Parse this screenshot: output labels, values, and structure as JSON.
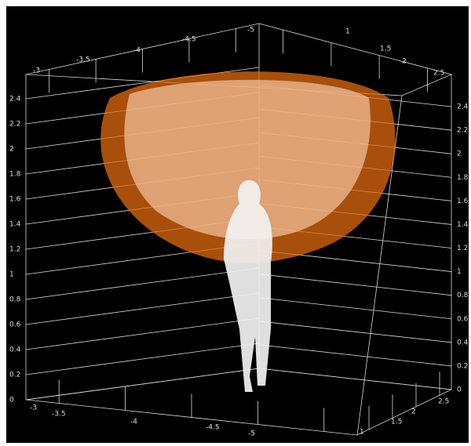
{
  "axes": {
    "left": [
      0,
      0.2,
      0.4,
      0.6,
      0.8,
      1,
      1.2,
      1.4,
      1.6,
      1.8,
      2,
      2.2,
      2.4
    ],
    "right": [
      0,
      0.2,
      0.4,
      0.6,
      0.8,
      1,
      1.2,
      1.4,
      1.6,
      1.8,
      2,
      2.2,
      2.4
    ],
    "top_left": [
      -3,
      -3.5,
      -4,
      -4.5,
      -5
    ],
    "top_right": [
      1,
      1.5,
      2,
      2.5
    ],
    "bottom_left": [
      -3,
      -3.5,
      -4,
      -4.5,
      -5
    ],
    "bottom_right": [
      1,
      1.5,
      2,
      2.5
    ]
  }
}
